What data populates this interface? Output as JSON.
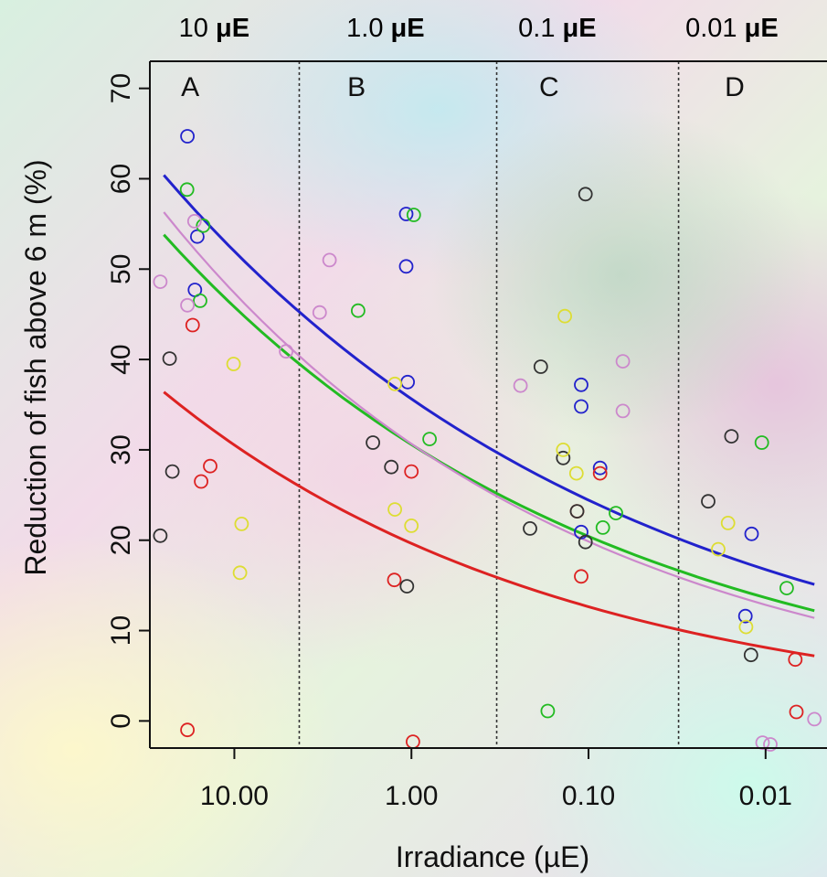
{
  "chart_data": {
    "type": "scatter",
    "xlabel": "Irradiance (µE)",
    "ylabel": "Reduction of fish above 6 m (%)",
    "x_scale": "log",
    "x_reversed": true,
    "xlim": [
      0.0045,
      30
    ],
    "ylim": [
      -3,
      73
    ],
    "x_ticks": [
      {
        "value": 10,
        "label": "10.00"
      },
      {
        "value": 1,
        "label": "1.00"
      },
      {
        "value": 0.1,
        "label": "0.10"
      },
      {
        "value": 0.01,
        "label": "0.01"
      }
    ],
    "y_ticks": [
      0,
      10,
      20,
      30,
      40,
      50,
      60,
      70
    ],
    "dividers": [
      4.3,
      0.33,
      0.031
    ],
    "panels": [
      {
        "label": "A",
        "x": 20
      },
      {
        "label": "B",
        "x": 2.3
      },
      {
        "label": "C",
        "x": 0.19
      },
      {
        "label": "D",
        "x": 0.017
      }
    ],
    "top_labels": [
      {
        "text": "10 μE",
        "x": 13
      },
      {
        "text": "1.0 μE",
        "x": 1.4
      },
      {
        "text": "0.1 μE",
        "x": 0.15
      },
      {
        "text": "0.01 μE",
        "x": 0.0155
      }
    ],
    "series": [
      {
        "color": "#2222cc",
        "curve": [
          [
            25,
            60.4
          ],
          [
            0.0053,
            15.1
          ]
        ],
        "points": [
          [
            18.4,
            64.7
          ],
          [
            16.2,
            53.6
          ],
          [
            16.7,
            47.7
          ],
          [
            1.07,
            56.1
          ],
          [
            1.07,
            50.3
          ],
          [
            1.05,
            37.5
          ],
          [
            0.11,
            37.2
          ],
          [
            0.11,
            34.8
          ],
          [
            0.11,
            20.9
          ],
          [
            0.086,
            28.0
          ],
          [
            0.012,
            20.7
          ],
          [
            0.013,
            11.6
          ]
        ]
      },
      {
        "color": "#22bb22",
        "curve": [
          [
            25,
            53.8
          ],
          [
            0.0053,
            12.2
          ]
        ],
        "points": [
          [
            18.5,
            58.8
          ],
          [
            15.0,
            54.8
          ],
          [
            15.6,
            46.5
          ],
          [
            0.97,
            56.0
          ],
          [
            2.0,
            45.4
          ],
          [
            0.79,
            31.2
          ],
          [
            0.17,
            1.1
          ],
          [
            0.083,
            21.4
          ],
          [
            0.07,
            23.0
          ],
          [
            0.0105,
            30.8
          ],
          [
            0.0076,
            14.7
          ]
        ]
      },
      {
        "color": "#dd2222",
        "curve": [
          [
            25,
            36.4
          ],
          [
            0.0053,
            7.2
          ]
        ],
        "points": [
          [
            17.2,
            43.8
          ],
          [
            18.4,
            -1.0
          ],
          [
            15.4,
            26.5
          ],
          [
            13.7,
            28.2
          ],
          [
            1.0,
            27.6
          ],
          [
            0.98,
            -2.3
          ],
          [
            1.25,
            15.6
          ],
          [
            0.11,
            16.0
          ],
          [
            0.116,
            23.2
          ],
          [
            0.086,
            27.4
          ],
          [
            0.0068,
            6.8
          ],
          [
            0.0067,
            1.0
          ]
        ]
      },
      {
        "color": "#333333",
        "curve": null,
        "points": [
          [
            26.2,
            20.5
          ],
          [
            23.2,
            40.1
          ],
          [
            22.4,
            27.6
          ],
          [
            1.65,
            30.8
          ],
          [
            1.3,
            28.1
          ],
          [
            1.06,
            14.9
          ],
          [
            0.186,
            39.2
          ],
          [
            0.214,
            21.3
          ],
          [
            0.139,
            29.1
          ],
          [
            0.116,
            23.2
          ],
          [
            0.104,
            19.8
          ],
          [
            0.104,
            58.3
          ],
          [
            0.0211,
            24.3
          ],
          [
            0.0156,
            31.5
          ],
          [
            0.0121,
            7.3
          ]
        ]
      },
      {
        "color": "#dddd33",
        "curve": null,
        "points": [
          [
            10.1,
            39.5
          ],
          [
            9.1,
            21.8
          ],
          [
            9.3,
            16.4
          ],
          [
            1.24,
            37.3
          ],
          [
            1.24,
            23.4
          ],
          [
            1.0,
            21.6
          ],
          [
            0.136,
            44.8
          ],
          [
            0.139,
            30.0
          ],
          [
            0.117,
            27.4
          ],
          [
            0.0185,
            19.0
          ],
          [
            0.0163,
            21.9
          ],
          [
            0.0129,
            10.4
          ]
        ]
      },
      {
        "color": "#cc88cc",
        "curve": [
          [
            25,
            56.3
          ],
          [
            0.0053,
            11.4
          ]
        ],
        "points": [
          [
            26.2,
            48.6
          ],
          [
            18.4,
            46.0
          ],
          [
            16.8,
            55.3
          ],
          [
            5.1,
            40.9
          ],
          [
            3.3,
            45.2
          ],
          [
            2.9,
            51.0
          ],
          [
            0.242,
            37.1
          ],
          [
            0.064,
            39.8
          ],
          [
            0.064,
            34.3
          ],
          [
            0.0104,
            -2.4
          ],
          [
            0.0094,
            -2.6
          ],
          [
            0.0053,
            0.2
          ]
        ]
      }
    ]
  }
}
